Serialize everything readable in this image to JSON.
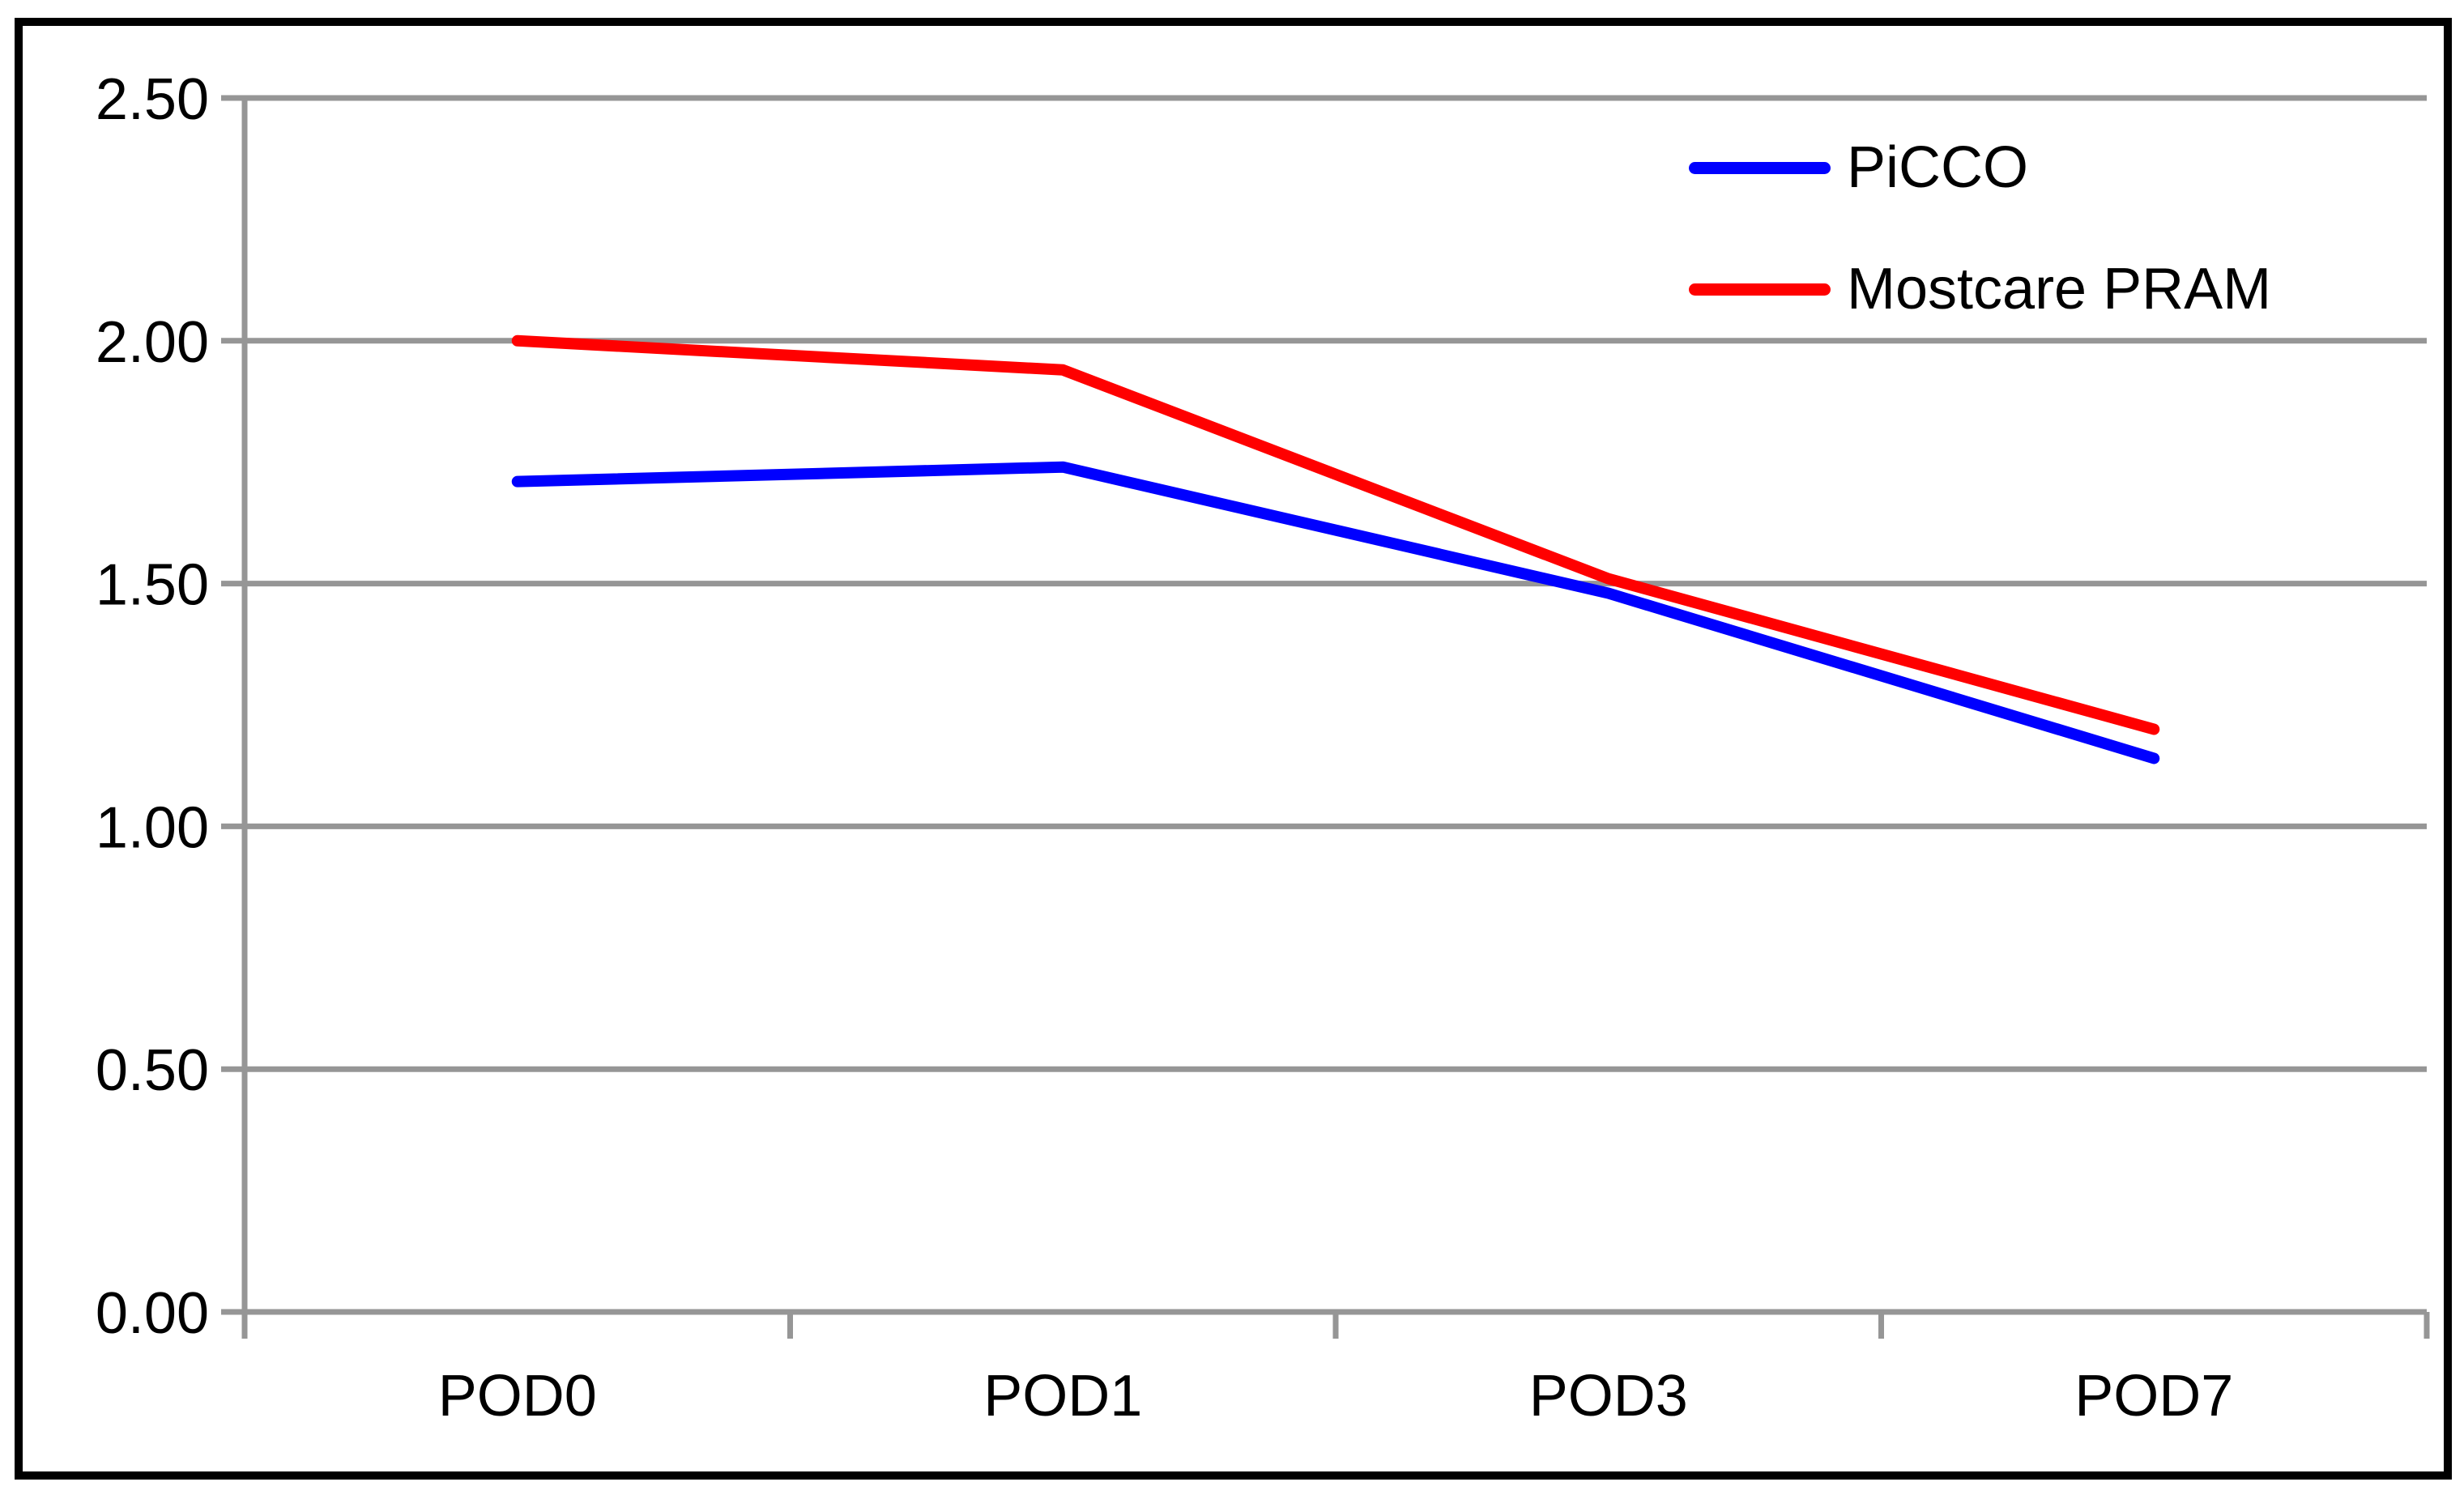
{
  "chart_data": {
    "type": "line",
    "categories": [
      "POD0",
      "POD1",
      "POD3",
      "POD7"
    ],
    "series": [
      {
        "name": "PiCCO",
        "color": "#0000ff",
        "values": [
          1.71,
          1.74,
          1.48,
          1.14
        ]
      },
      {
        "name": "Mostcare PRAM",
        "color": "#ff0000",
        "values": [
          2.0,
          1.94,
          1.51,
          1.2
        ]
      }
    ],
    "title": "",
    "xlabel": "",
    "ylabel": "",
    "ylim": [
      0,
      2.5
    ],
    "ytick_step": 0.5,
    "ytick_labels": [
      "0.00",
      "0.50",
      "1.00",
      "1.50",
      "2.00",
      "2.50"
    ],
    "grid": true,
    "gridline_color": "#969696",
    "axis_color": "#969696",
    "text_color": "#000000",
    "frame_color": "#000000",
    "legend_position": "top-right"
  }
}
